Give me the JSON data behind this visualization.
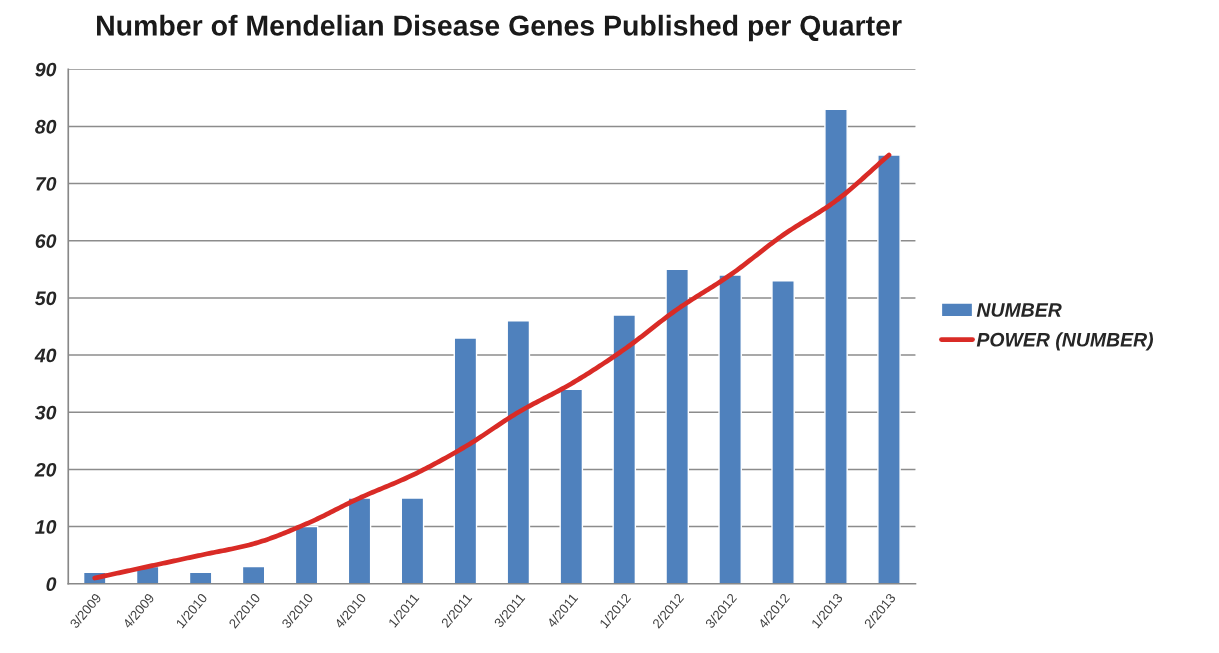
{
  "chart_data": {
    "type": "bar",
    "title": "Number of Mendelian Disease Genes Published per Quarter",
    "categories": [
      "3/2009",
      "4/2009",
      "1/2010",
      "2/2010",
      "3/2010",
      "4/2010",
      "1/2011",
      "2/2011",
      "3/2011",
      "4/2011",
      "1/2012",
      "2/2012",
      "3/2012",
      "4/2012",
      "1/2013",
      "2/2013"
    ],
    "series": [
      {
        "name": "NUMBER",
        "color": "#4f81bd",
        "values": [
          2,
          3,
          2,
          3,
          10,
          15,
          15,
          43,
          46,
          34,
          47,
          55,
          54,
          53,
          83,
          75
        ]
      },
      {
        "name": "POWER (NUMBER)",
        "type": "line",
        "color": "#d92b26",
        "values": [
          1,
          3,
          5,
          7,
          10.5,
          15,
          19,
          24,
          30,
          35,
          41,
          48,
          54,
          61,
          67,
          75
        ]
      }
    ],
    "ylim": [
      0,
      90
    ],
    "yticks": [
      0,
      10,
      20,
      30,
      40,
      50,
      60,
      70,
      80,
      90
    ],
    "grid": "y",
    "legend": "right",
    "marker": "none",
    "line_style": "solid"
  }
}
